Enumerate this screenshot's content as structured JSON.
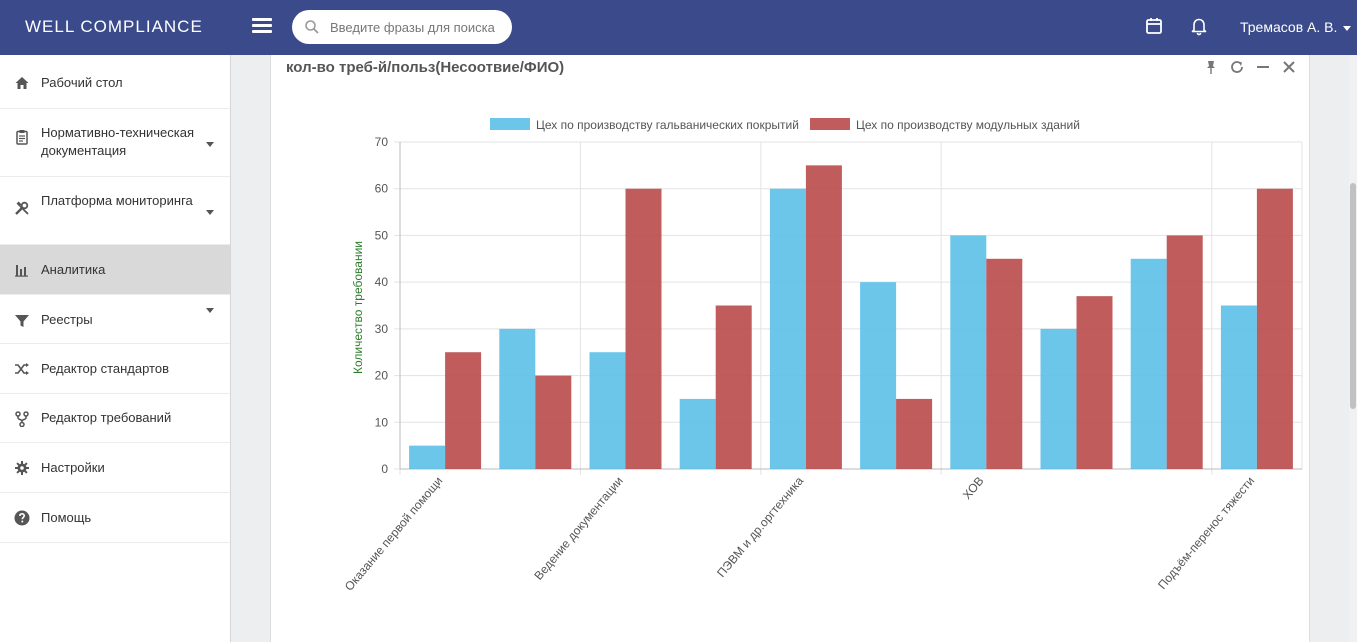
{
  "header": {
    "brand": "WELL COMPLIANCE",
    "search_placeholder": "Введите фразы для поиска",
    "user_name": "Тремасов А. В."
  },
  "sidebar": {
    "items": [
      {
        "label": "Рабочий стол",
        "icon": "home-icon",
        "has_caret": false,
        "active": false
      },
      {
        "label": "Нормативно-техническая документация",
        "icon": "clipboard-icon",
        "has_caret": true,
        "active": false
      },
      {
        "label": "Платформа мониторинга",
        "icon": "tools-icon",
        "has_caret": true,
        "active": false
      },
      {
        "label": "Аналитика",
        "icon": "bar-chart-icon",
        "has_caret": false,
        "active": true
      },
      {
        "label": "Реестры",
        "icon": "filter-icon",
        "has_caret": true,
        "active": false
      },
      {
        "label": "Редактор стандартов",
        "icon": "shuffle-icon",
        "has_caret": false,
        "active": false
      },
      {
        "label": "Редактор требований",
        "icon": "fork-icon",
        "has_caret": false,
        "active": false
      },
      {
        "label": "Настройки",
        "icon": "gear-icon",
        "has_caret": false,
        "active": false
      },
      {
        "label": "Помощь",
        "icon": "question-icon",
        "has_caret": false,
        "active": false
      }
    ]
  },
  "panel": {
    "title": "кол-во треб-й/польз(Несоотвие/ФИО)"
  },
  "chart_data": {
    "type": "bar",
    "ylabel": "Количество требовании",
    "xlabel": "",
    "ylim": [
      0,
      70
    ],
    "yticks": [
      0,
      10,
      20,
      30,
      40,
      50,
      60,
      70
    ],
    "categories": [
      "Оказание первой помощи",
      "",
      "Ведение документации",
      "",
      "ПЭВМ и др.оргтехника",
      "",
      "ХОВ",
      "",
      "",
      "Подъём-перенос тяжести"
    ],
    "series": [
      {
        "name": "Цех по производству гальванических покрытий",
        "color": "#5bc0e8",
        "values": [
          5,
          30,
          25,
          15,
          60,
          40,
          50,
          30,
          45,
          35
        ]
      },
      {
        "name": "Цех по производству модульных зданий",
        "color": "#b94a4a",
        "values": [
          25,
          20,
          60,
          35,
          65,
          15,
          45,
          37,
          50,
          60
        ]
      }
    ],
    "legend_position": "top",
    "grid": true
  }
}
